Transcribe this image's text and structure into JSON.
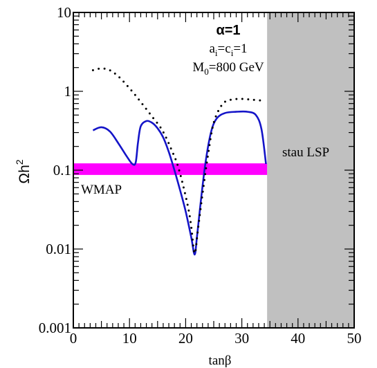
{
  "chart_data": {
    "type": "line",
    "xlabel": "tanβ",
    "ylabel": "Ωh",
    "ylabel_superscript": "2",
    "x_scale": "linear",
    "y_scale": "log",
    "xlim": [
      0,
      50
    ],
    "ylim": [
      0.001,
      10
    ],
    "x_ticks": [
      0,
      10,
      20,
      30,
      40,
      50
    ],
    "y_ticks": [
      0.001,
      0.01,
      0.1,
      1,
      10
    ],
    "x_tick_labels": [
      "0",
      "10",
      "20",
      "30",
      "40",
      "50"
    ],
    "y_tick_labels": [
      "0.001",
      "0.01",
      "0.1",
      "1",
      "10"
    ],
    "annotations": {
      "alpha": "α=1",
      "ac_a": "a",
      "ac_i1": "i",
      "ac_eq": "=c",
      "ac_i2": "i",
      "ac_rest": "=1",
      "m0_m": "M",
      "m0_sub": "0",
      "m0_rest": "=800 GeV",
      "wmap": "WMAP",
      "stau": "stau LSP"
    },
    "bands": {
      "wmap": {
        "y_range": [
          0.087,
          0.122
        ],
        "x_range": [
          0,
          34.5
        ],
        "color": "#ff00ff"
      },
      "stau_lsp": {
        "x_range": [
          34.5,
          50
        ],
        "color": "#c0c0c0"
      }
    },
    "series": [
      {
        "style": "solid",
        "color": "#1414c8",
        "points": [
          [
            3.5,
            0.32
          ],
          [
            5,
            0.35
          ],
          [
            6.5,
            0.31
          ],
          [
            8,
            0.22
          ],
          [
            9.5,
            0.15
          ],
          [
            10.5,
            0.12
          ],
          [
            11.1,
            0.125
          ],
          [
            11.5,
            0.22
          ],
          [
            12,
            0.36
          ],
          [
            13,
            0.42
          ],
          [
            14,
            0.4
          ],
          [
            15,
            0.34
          ],
          [
            16,
            0.26
          ],
          [
            17,
            0.17
          ],
          [
            18,
            0.1
          ],
          [
            19,
            0.056
          ],
          [
            20,
            0.03
          ],
          [
            21,
            0.014
          ],
          [
            21.6,
            0.0085
          ],
          [
            22,
            0.014
          ],
          [
            22.6,
            0.035
          ],
          [
            23.5,
            0.12
          ],
          [
            24.5,
            0.3
          ],
          [
            25.5,
            0.45
          ],
          [
            27,
            0.53
          ],
          [
            29,
            0.55
          ],
          [
            31,
            0.55
          ],
          [
            32.5,
            0.5
          ],
          [
            33.5,
            0.33
          ],
          [
            34.3,
            0.12
          ]
        ]
      },
      {
        "style": "dotted",
        "color": "#000000",
        "points": [
          [
            3.5,
            1.85
          ],
          [
            5,
            1.95
          ],
          [
            6.5,
            1.85
          ],
          [
            8,
            1.55
          ],
          [
            9.5,
            1.2
          ],
          [
            11,
            0.9
          ],
          [
            12.5,
            0.66
          ],
          [
            14,
            0.48
          ],
          [
            15.5,
            0.35
          ],
          [
            16.5,
            0.26
          ],
          [
            17.5,
            0.18
          ],
          [
            18.5,
            0.12
          ],
          [
            19.5,
            0.066
          ],
          [
            20.5,
            0.032
          ],
          [
            21,
            0.019
          ],
          [
            21.6,
            0.0088
          ],
          [
            22.2,
            0.018
          ],
          [
            23,
            0.05
          ],
          [
            24,
            0.16
          ],
          [
            25,
            0.4
          ],
          [
            26.5,
            0.68
          ],
          [
            28,
            0.78
          ],
          [
            30,
            0.8
          ],
          [
            32,
            0.78
          ],
          [
            34,
            0.76
          ]
        ]
      }
    ]
  }
}
